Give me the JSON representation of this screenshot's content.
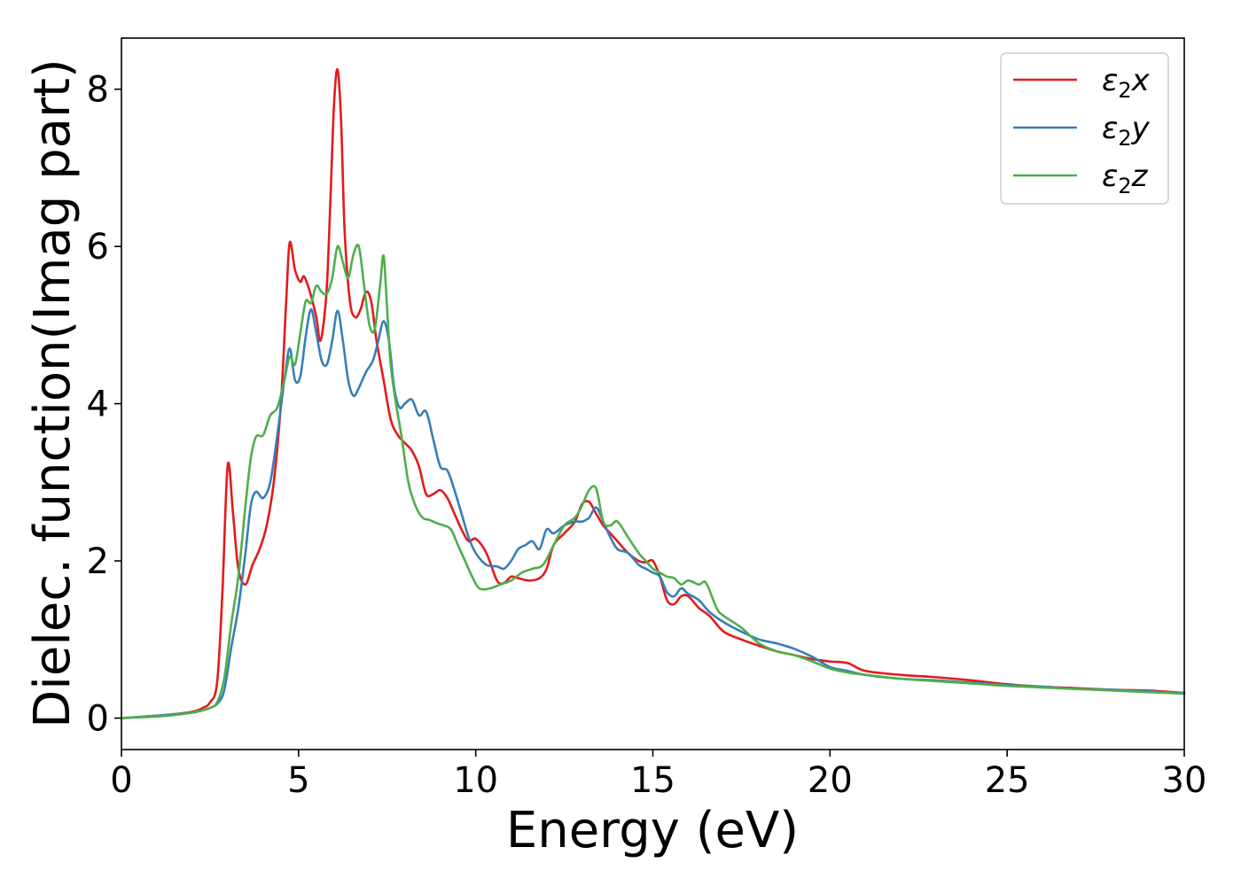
{
  "chart_data": {
    "type": "line",
    "xlabel": "Energy (eV)",
    "ylabel": "Dielec. function(Imag part)",
    "xlim": [
      0,
      30
    ],
    "ylim": [
      -0.4,
      8.65
    ],
    "xticks": [
      0,
      5,
      10,
      15,
      20,
      25,
      30
    ],
    "yticks": [
      0,
      2,
      4,
      6,
      8
    ],
    "grid": false,
    "legend_position": "top-right",
    "series": [
      {
        "name": "ε2x",
        "legend_sym": "ε",
        "legend_sub": "2",
        "legend_var": "x",
        "color": "#e41a1c",
        "x": [
          0,
          1,
          1.5,
          2,
          2.3,
          2.5,
          2.7,
          2.85,
          3.0,
          3.15,
          3.3,
          3.5,
          3.7,
          3.9,
          4.1,
          4.3,
          4.5,
          4.65,
          4.75,
          4.9,
          5.05,
          5.15,
          5.3,
          5.5,
          5.6,
          5.7,
          5.8,
          5.9,
          6.0,
          6.1,
          6.2,
          6.3,
          6.45,
          6.6,
          6.75,
          6.9,
          7.05,
          7.2,
          7.4,
          7.6,
          7.8,
          8.0,
          8.2,
          8.4,
          8.6,
          8.8,
          9.0,
          9.2,
          9.4,
          9.6,
          9.8,
          10.0,
          10.3,
          10.6,
          10.8,
          11.0,
          11.2,
          11.5,
          11.8,
          12.0,
          12.2,
          12.5,
          12.8,
          13.0,
          13.2,
          13.4,
          13.6,
          13.8,
          14.0,
          14.3,
          14.6,
          14.8,
          15.0,
          15.2,
          15.4,
          15.6,
          15.8,
          16.0,
          16.3,
          16.6,
          17.0,
          17.5,
          18.0,
          18.5,
          19.0,
          19.5,
          20.0,
          20.5,
          21.0,
          22.0,
          23.0,
          24.0,
          25.0,
          26.0,
          27.0,
          28.0,
          29.0,
          30.0
        ],
        "values": [
          0.0,
          0.03,
          0.05,
          0.08,
          0.13,
          0.2,
          0.45,
          1.6,
          3.22,
          2.6,
          1.9,
          1.7,
          1.95,
          2.15,
          2.45,
          3.0,
          4.0,
          5.3,
          6.05,
          5.7,
          5.55,
          5.62,
          5.45,
          5.1,
          4.8,
          5.0,
          5.5,
          6.6,
          7.8,
          8.25,
          7.6,
          6.2,
          5.3,
          5.1,
          5.2,
          5.42,
          5.3,
          4.8,
          4.3,
          3.8,
          3.6,
          3.5,
          3.4,
          3.2,
          2.85,
          2.85,
          2.9,
          2.8,
          2.6,
          2.4,
          2.25,
          2.28,
          2.1,
          1.75,
          1.72,
          1.8,
          1.78,
          1.75,
          1.78,
          1.9,
          2.2,
          2.35,
          2.5,
          2.72,
          2.75,
          2.6,
          2.45,
          2.35,
          2.25,
          2.1,
          2.0,
          1.98,
          2.0,
          1.8,
          1.5,
          1.45,
          1.55,
          1.55,
          1.4,
          1.3,
          1.1,
          1.0,
          0.92,
          0.85,
          0.8,
          0.75,
          0.72,
          0.7,
          0.6,
          0.55,
          0.52,
          0.48,
          0.43,
          0.4,
          0.38,
          0.36,
          0.35,
          0.32
        ]
      },
      {
        "name": "ε2y",
        "legend_sym": "ε",
        "legend_sub": "2",
        "legend_var": "y",
        "color": "#377eb8",
        "x": [
          0,
          1,
          1.5,
          2,
          2.3,
          2.5,
          2.7,
          2.9,
          3.1,
          3.3,
          3.5,
          3.65,
          3.8,
          4.0,
          4.2,
          4.4,
          4.6,
          4.75,
          4.9,
          5.05,
          5.2,
          5.35,
          5.5,
          5.65,
          5.8,
          5.95,
          6.1,
          6.25,
          6.4,
          6.55,
          6.7,
          6.9,
          7.1,
          7.25,
          7.4,
          7.55,
          7.7,
          7.85,
          8.0,
          8.2,
          8.4,
          8.6,
          8.8,
          9.0,
          9.2,
          9.4,
          9.6,
          9.8,
          10.0,
          10.3,
          10.6,
          10.8,
          11.0,
          11.2,
          11.4,
          11.6,
          11.8,
          12.0,
          12.2,
          12.5,
          12.8,
          13.0,
          13.2,
          13.4,
          13.6,
          13.8,
          14.0,
          14.3,
          14.6,
          14.8,
          15.0,
          15.2,
          15.4,
          15.6,
          15.8,
          16.0,
          16.3,
          16.6,
          17.0,
          17.5,
          18.0,
          18.5,
          19.0,
          19.5,
          20.0,
          20.5,
          21.0,
          22.0,
          23.0,
          24.0,
          25.0,
          26.0,
          27.0,
          28.0,
          29.0,
          30.0
        ],
        "values": [
          0.0,
          0.03,
          0.05,
          0.07,
          0.1,
          0.13,
          0.18,
          0.35,
          0.9,
          1.4,
          2.1,
          2.7,
          2.88,
          2.8,
          3.0,
          3.6,
          4.3,
          4.7,
          4.3,
          4.35,
          4.85,
          5.2,
          4.9,
          4.55,
          4.5,
          4.8,
          5.18,
          4.8,
          4.3,
          4.1,
          4.2,
          4.4,
          4.55,
          4.8,
          5.05,
          4.8,
          4.2,
          3.95,
          4.0,
          4.05,
          3.85,
          3.9,
          3.55,
          3.2,
          3.15,
          2.9,
          2.6,
          2.3,
          2.1,
          1.95,
          1.93,
          1.9,
          2.0,
          2.15,
          2.2,
          2.25,
          2.15,
          2.4,
          2.35,
          2.45,
          2.5,
          2.5,
          2.55,
          2.68,
          2.5,
          2.3,
          2.15,
          2.1,
          1.95,
          1.9,
          1.85,
          1.8,
          1.6,
          1.55,
          1.65,
          1.58,
          1.5,
          1.35,
          1.22,
          1.1,
          1.0,
          0.95,
          0.88,
          0.78,
          0.65,
          0.6,
          0.55,
          0.5,
          0.48,
          0.45,
          0.42,
          0.4,
          0.37,
          0.36,
          0.34,
          0.32
        ]
      },
      {
        "name": "ε2z",
        "legend_sym": "ε",
        "legend_sub": "2",
        "legend_var": "z",
        "color": "#4daf4a",
        "x": [
          0,
          1,
          1.5,
          2,
          2.3,
          2.5,
          2.7,
          2.9,
          3.1,
          3.3,
          3.5,
          3.65,
          3.8,
          4.0,
          4.2,
          4.4,
          4.6,
          4.75,
          4.9,
          5.05,
          5.2,
          5.35,
          5.5,
          5.65,
          5.8,
          5.95,
          6.1,
          6.25,
          6.4,
          6.55,
          6.7,
          6.85,
          7.0,
          7.15,
          7.3,
          7.4,
          7.5,
          7.6,
          7.75,
          7.9,
          8.1,
          8.3,
          8.5,
          8.7,
          8.9,
          9.1,
          9.3,
          9.5,
          9.7,
          9.9,
          10.1,
          10.4,
          10.7,
          11.0,
          11.3,
          11.6,
          11.9,
          12.2,
          12.5,
          12.8,
          13.0,
          13.2,
          13.4,
          13.6,
          13.8,
          14.0,
          14.3,
          14.6,
          14.8,
          15.0,
          15.2,
          15.4,
          15.6,
          15.8,
          16.0,
          16.3,
          16.5,
          16.8,
          17.0,
          17.5,
          18.0,
          18.5,
          19.0,
          19.5,
          20.0,
          20.5,
          21.0,
          22.0,
          23.0,
          24.0,
          25.0,
          26.0,
          27.0,
          28.0,
          29.0,
          30.0
        ],
        "values": [
          0.0,
          0.02,
          0.04,
          0.07,
          0.1,
          0.13,
          0.2,
          0.5,
          1.2,
          1.8,
          2.7,
          3.3,
          3.58,
          3.6,
          3.85,
          3.95,
          4.3,
          4.6,
          4.5,
          4.9,
          5.3,
          5.28,
          5.5,
          5.42,
          5.4,
          5.6,
          6.0,
          5.8,
          5.6,
          5.9,
          6.0,
          5.5,
          5.0,
          4.95,
          5.5,
          5.88,
          5.2,
          4.5,
          4.0,
          3.6,
          3.0,
          2.7,
          2.55,
          2.52,
          2.48,
          2.45,
          2.4,
          2.2,
          2.0,
          1.8,
          1.65,
          1.65,
          1.7,
          1.75,
          1.85,
          1.9,
          1.95,
          2.2,
          2.45,
          2.55,
          2.7,
          2.9,
          2.92,
          2.5,
          2.45,
          2.5,
          2.3,
          2.1,
          2.0,
          1.9,
          1.85,
          1.8,
          1.78,
          1.7,
          1.75,
          1.7,
          1.72,
          1.4,
          1.3,
          1.15,
          0.95,
          0.85,
          0.8,
          0.72,
          0.63,
          0.58,
          0.55,
          0.5,
          0.47,
          0.44,
          0.41,
          0.39,
          0.37,
          0.35,
          0.33,
          0.31
        ]
      }
    ]
  }
}
